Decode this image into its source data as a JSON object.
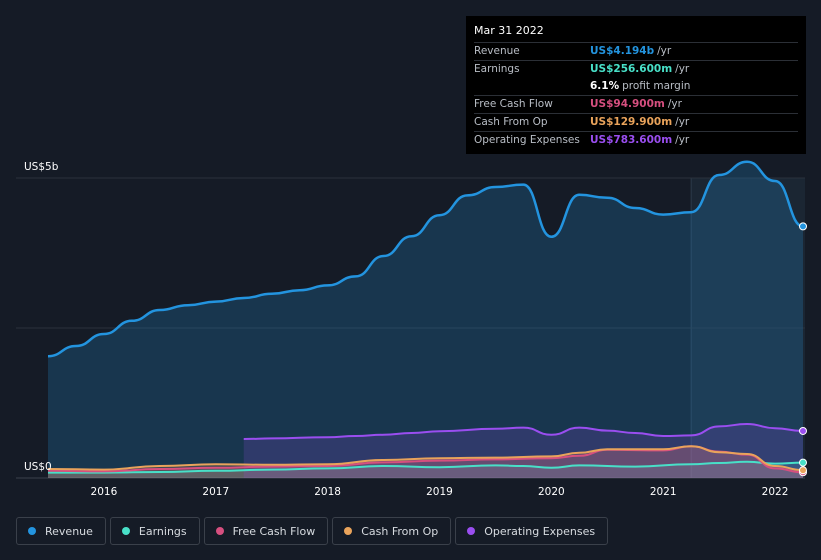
{
  "tooltip": {
    "date": "Mar 31 2022",
    "rows": [
      {
        "label": "Revenue",
        "value": "US$4.194b",
        "unit": "/yr",
        "color": "#2394df"
      },
      {
        "label": "Earnings",
        "value": "US$256.600m",
        "unit": "/yr",
        "color": "#48e0c8"
      },
      {
        "label": "",
        "value": "6.1%",
        "unit": "profit margin",
        "color": "#ffffff"
      },
      {
        "label": "Free Cash Flow",
        "value": "US$94.900m",
        "unit": "/yr",
        "color": "#d64f7f"
      },
      {
        "label": "Cash From Op",
        "value": "US$129.900m",
        "unit": "/yr",
        "color": "#e9a35b"
      },
      {
        "label": "Operating Expenses",
        "value": "US$783.600m",
        "unit": "/yr",
        "color": "#9a4ef0"
      }
    ]
  },
  "chart_data": {
    "type": "area",
    "y_top_label": "US$5b",
    "y_bottom_label": "US$0",
    "ylim": [
      0,
      5000
    ],
    "xlim": [
      2015.5,
      2022.25
    ],
    "x_ticks": [
      {
        "value": 2016,
        "label": "2016"
      },
      {
        "value": 2017,
        "label": "2017"
      },
      {
        "value": 2018,
        "label": "2018"
      },
      {
        "value": 2019,
        "label": "2019"
      },
      {
        "value": 2020,
        "label": "2020"
      },
      {
        "value": 2021,
        "label": "2021"
      },
      {
        "value": 2022,
        "label": "2022"
      }
    ],
    "highlight_start": 2021.25,
    "series": [
      {
        "name": "Revenue",
        "color": "#2394df",
        "x": [
          2015.5,
          2015.75,
          2016.0,
          2016.25,
          2016.5,
          2016.75,
          2017.0,
          2017.25,
          2017.5,
          2017.75,
          2018.0,
          2018.25,
          2018.5,
          2018.75,
          2019.0,
          2019.25,
          2019.5,
          2019.75,
          2020.0,
          2020.25,
          2020.5,
          2020.75,
          2021.0,
          2021.25,
          2021.5,
          2021.75,
          2022.0,
          2022.25
        ],
        "values": [
          2030,
          2200,
          2400,
          2620,
          2800,
          2880,
          2940,
          3000,
          3070,
          3130,
          3210,
          3360,
          3700,
          4030,
          4380,
          4710,
          4850,
          4890,
          4020,
          4720,
          4670,
          4500,
          4390,
          4430,
          5050,
          5270,
          4950,
          4194
        ]
      },
      {
        "name": "Earnings",
        "color": "#48e0c8",
        "x": [
          2015.5,
          2016.0,
          2016.5,
          2017.0,
          2017.5,
          2018.0,
          2018.5,
          2019.0,
          2019.5,
          2019.75,
          2020.0,
          2020.25,
          2020.75,
          2021.25,
          2021.5,
          2021.75,
          2022.0,
          2022.25
        ],
        "values": [
          90,
          90,
          100,
          120,
          140,
          160,
          200,
          180,
          210,
          200,
          170,
          210,
          190,
          230,
          250,
          270,
          240,
          256.6
        ]
      },
      {
        "name": "Free Cash Flow",
        "color": "#d64f7f",
        "x": [
          2015.5,
          2016.0,
          2016.5,
          2017.0,
          2017.5,
          2018.0,
          2018.5,
          2019.0,
          2019.5,
          2020.0,
          2020.25,
          2020.5,
          2021.0,
          2021.25,
          2021.5,
          2021.75,
          2022.0,
          2022.25
        ],
        "values": [
          120,
          110,
          150,
          170,
          190,
          200,
          260,
          290,
          310,
          330,
          370,
          470,
          460,
          530,
          440,
          390,
          160,
          94.9
        ]
      },
      {
        "name": "Cash From Op",
        "color": "#e9a35b",
        "x": [
          2015.5,
          2016.0,
          2016.5,
          2017.0,
          2017.5,
          2018.0,
          2018.5,
          2019.0,
          2019.5,
          2020.0,
          2020.25,
          2020.5,
          2021.0,
          2021.25,
          2021.5,
          2021.75,
          2022.0,
          2022.25
        ],
        "values": [
          150,
          140,
          200,
          230,
          220,
          230,
          300,
          330,
          340,
          360,
          420,
          480,
          480,
          530,
          430,
          400,
          200,
          129.9
        ]
      },
      {
        "name": "Operating Expenses",
        "color": "#9a4ef0",
        "x": [
          2017.25,
          2017.5,
          2018.0,
          2018.25,
          2018.5,
          2018.75,
          2019.0,
          2019.5,
          2019.75,
          2020.0,
          2020.25,
          2020.5,
          2020.75,
          2021.0,
          2021.25,
          2021.5,
          2021.75,
          2022.0,
          2022.25
        ],
        "values": [
          650,
          660,
          680,
          700,
          720,
          750,
          780,
          820,
          840,
          720,
          840,
          790,
          750,
          700,
          710,
          860,
          900,
          830,
          783.6
        ]
      }
    ]
  },
  "legend": [
    {
      "label": "Revenue",
      "color": "#2394df"
    },
    {
      "label": "Earnings",
      "color": "#48e0c8"
    },
    {
      "label": "Free Cash Flow",
      "color": "#d64f7f"
    },
    {
      "label": "Cash From Op",
      "color": "#e9a35b"
    },
    {
      "label": "Operating Expenses",
      "color": "#9a4ef0"
    }
  ]
}
